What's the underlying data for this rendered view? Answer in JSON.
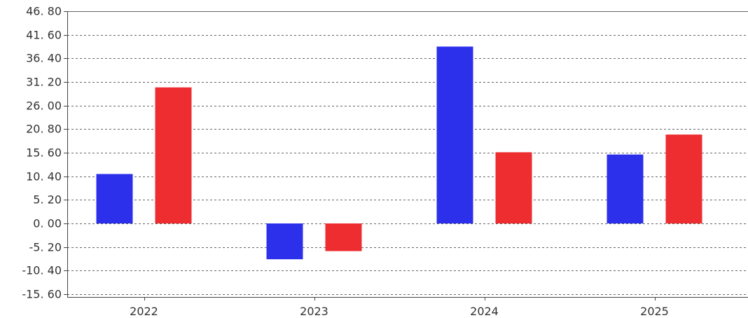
{
  "chart_data": {
    "type": "bar",
    "title": "",
    "xlabel": "",
    "ylabel": "",
    "categories": [
      "2022",
      "2023",
      "2024",
      "2025"
    ],
    "series": [
      {
        "color": "#2d30eb",
        "values": [
          10.9,
          -7.9,
          39.0,
          15.2
        ]
      },
      {
        "color": "#ee2d30",
        "values": [
          30.0,
          -6.1,
          15.7,
          19.6
        ]
      }
    ],
    "ylim": [
      -15.6,
      46.8
    ],
    "yticks": [
      46.8,
      41.6,
      36.4,
      31.2,
      26.0,
      20.8,
      15.6,
      10.4,
      5.2,
      0.0,
      -5.2,
      -10.4,
      -15.6
    ],
    "ytick_labels": [
      "46. 80",
      "41. 60",
      "36. 40",
      "31. 20",
      "26. 00",
      "20. 80",
      "15. 60",
      "10. 40",
      "5. 20",
      "0. 00",
      "-5. 20",
      "-10. 40",
      "-15. 60"
    ],
    "grid": true,
    "legend": "none"
  }
}
